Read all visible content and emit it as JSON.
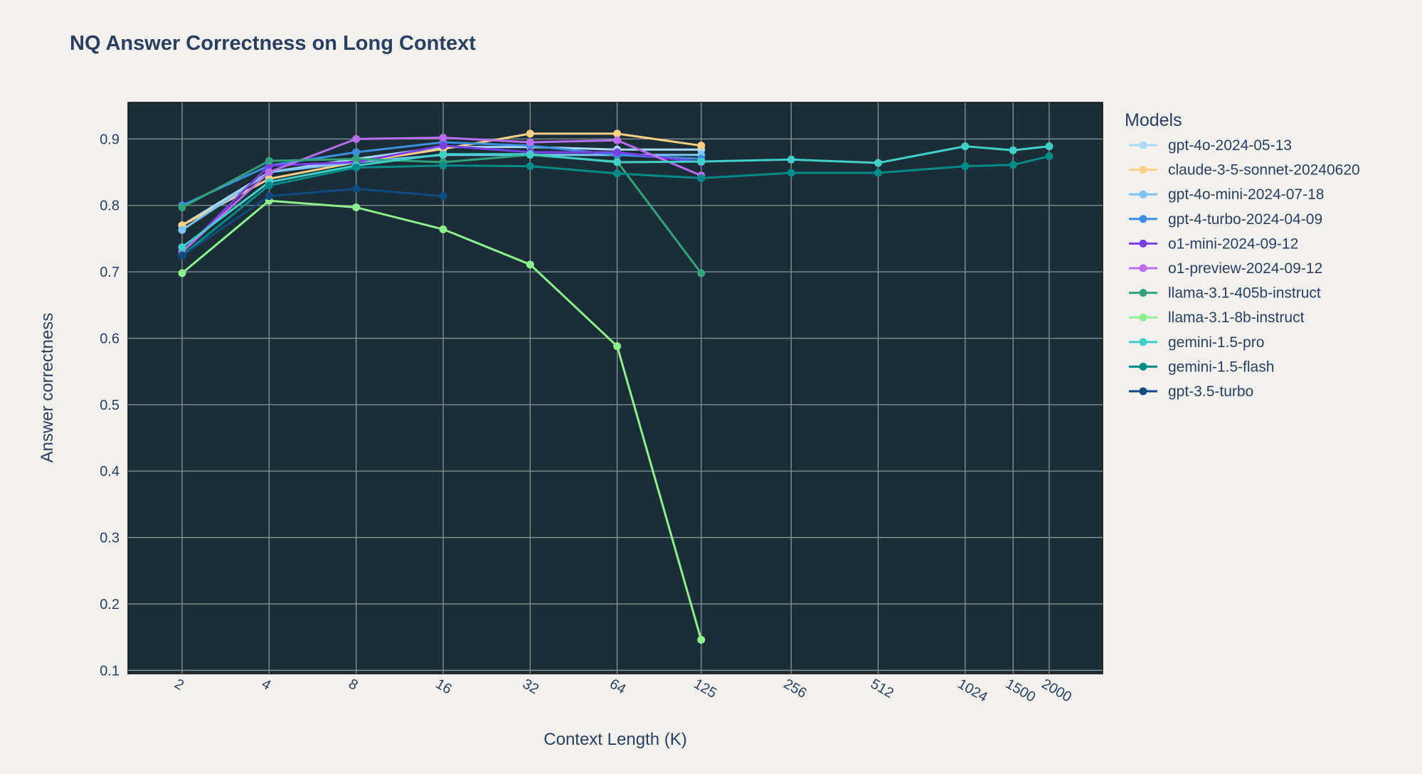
{
  "chart_data": {
    "type": "line",
    "title": "NQ Answer Correctness on Long Context",
    "xlabel": "Context Length (K)",
    "ylabel": "Answer correctness",
    "x_scale": "log",
    "xlim": [
      1.3,
      3060
    ],
    "ylim": [
      0.095,
      0.955
    ],
    "x_ticks": [
      2,
      4,
      8,
      16,
      32,
      64,
      125,
      256,
      512,
      1024,
      1500,
      2000
    ],
    "y_ticks": [
      0.1,
      0.2,
      0.3,
      0.4,
      0.5,
      0.6,
      0.7,
      0.8,
      0.9
    ],
    "grid": true,
    "plot_bgcolor": "#1b2e37",
    "legend_title": "Models",
    "legend_position": "right",
    "series": [
      {
        "name": "gpt-4o-2024-05-13",
        "color": "#a9daf8",
        "x": [
          2,
          4,
          8,
          16,
          32,
          64,
          125
        ],
        "y": [
          0.77,
          0.85,
          0.87,
          0.888,
          0.888,
          0.884,
          0.884
        ]
      },
      {
        "name": "claude-3-5-sonnet-20240620",
        "color": "#fdd086",
        "x": [
          2,
          4,
          8,
          16,
          32,
          64,
          125
        ],
        "y": [
          0.77,
          0.84,
          0.865,
          0.885,
          0.908,
          0.908,
          0.89
        ]
      },
      {
        "name": "gpt-4o-mini-2024-07-18",
        "color": "#7cc4f8",
        "x": [
          2,
          4,
          8,
          16,
          32,
          64,
          125
        ],
        "y": [
          0.763,
          0.85,
          0.865,
          0.876,
          0.876,
          0.876,
          0.876
        ]
      },
      {
        "name": "gpt-4-turbo-2024-04-09",
        "color": "#3b8fde",
        "x": [
          2,
          4,
          8,
          16,
          32,
          64,
          125
        ],
        "y": [
          0.8,
          0.86,
          0.88,
          0.895,
          0.89,
          0.876,
          0.87
        ]
      },
      {
        "name": "o1-mini-2024-09-12",
        "color": "#7a3fe6",
        "x": [
          2,
          4,
          8,
          16,
          32,
          64,
          125
        ],
        "y": [
          0.73,
          0.86,
          0.865,
          0.89,
          0.88,
          0.88,
          0.865
        ]
      },
      {
        "name": "o1-preview-2024-09-12",
        "color": "#b96ef2",
        "x": [
          2,
          4,
          8,
          16,
          32,
          64,
          125
        ],
        "y": [
          0.73,
          0.85,
          0.9,
          0.902,
          0.895,
          0.898,
          0.845
        ]
      },
      {
        "name": "llama-3.1-405b-instruct",
        "color": "#32a27c",
        "x": [
          2,
          4,
          8,
          16,
          32,
          64,
          125
        ],
        "y": [
          0.797,
          0.867,
          0.87,
          0.865,
          0.876,
          0.866,
          0.698
        ]
      },
      {
        "name": "llama-3.1-8b-instruct",
        "color": "#8ef08c",
        "x": [
          2,
          4,
          8,
          16,
          32,
          64,
          125
        ],
        "y": [
          0.698,
          0.807,
          0.797,
          0.764,
          0.711,
          0.588,
          0.146
        ]
      },
      {
        "name": "gemini-1.5-pro",
        "color": "#40cfc8",
        "x": [
          2,
          4,
          8,
          16,
          32,
          64,
          125,
          256,
          512,
          1024,
          1500,
          2000
        ],
        "y": [
          0.737,
          0.835,
          0.86,
          0.877,
          0.877,
          0.865,
          0.866,
          0.869,
          0.864,
          0.889,
          0.883,
          0.889
        ]
      },
      {
        "name": "gemini-1.5-flash",
        "color": "#008b8b",
        "x": [
          2,
          4,
          8,
          16,
          32,
          64,
          125,
          256,
          512,
          1024,
          1500,
          2000
        ],
        "y": [
          0.725,
          0.83,
          0.857,
          0.86,
          0.859,
          0.848,
          0.841,
          0.849,
          0.849,
          0.859,
          0.861,
          0.874
        ]
      },
      {
        "name": "gpt-3.5-turbo",
        "color": "#0f4a80",
        "x": [
          2,
          4,
          8,
          16
        ],
        "y": [
          0.724,
          0.814,
          0.825,
          0.814
        ]
      }
    ]
  }
}
